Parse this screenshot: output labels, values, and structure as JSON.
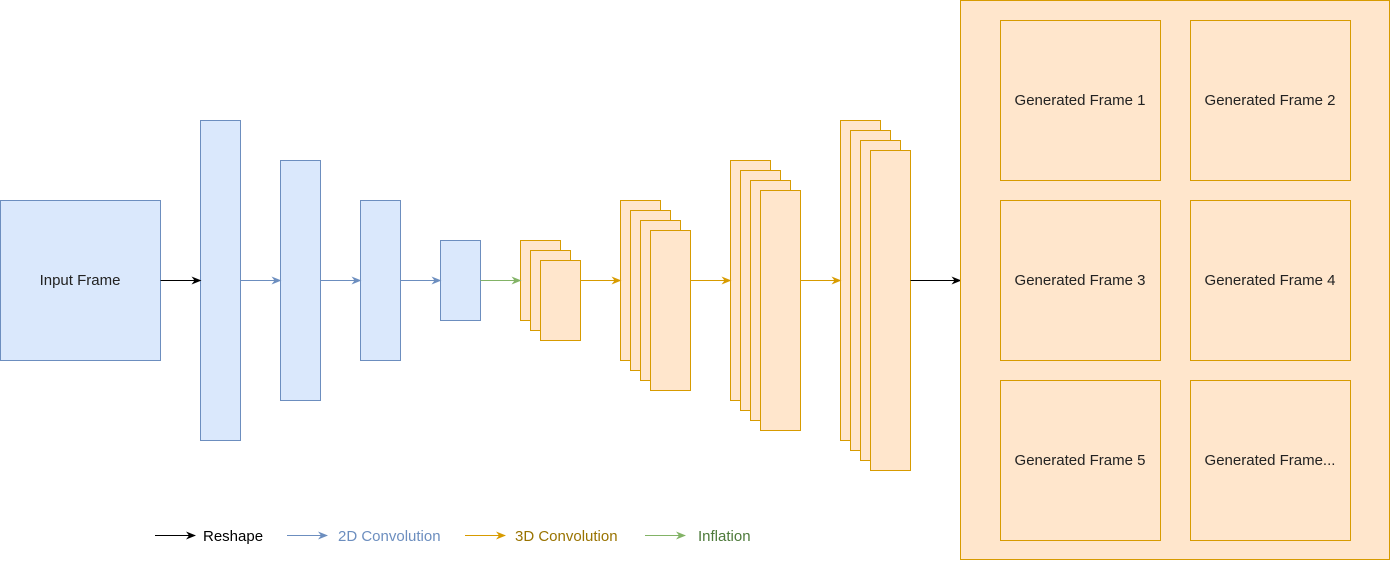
{
  "input": {
    "label": "Input Frame"
  },
  "output": {
    "frames": [
      "Generated Frame 1",
      "Generated Frame 2",
      "Generated Frame 3",
      "Generated Frame 4",
      "Generated Frame 5",
      "Generated Frame..."
    ]
  },
  "legend": {
    "reshape": "Reshape",
    "conv2d": "2D Convolution",
    "conv3d": "3D Convolution",
    "inflation": "Inflation"
  },
  "colors": {
    "blue_fill": "#dae8fc",
    "blue_stroke": "#6c8ebf",
    "orange_fill": "#ffe6cc",
    "orange_stroke": "#d79b00",
    "green_stroke": "#82b366",
    "black": "#000000",
    "conv2d_text": "#6c8ebf",
    "conv3d_text": "#997300",
    "inflation_text": "#4d7a3a"
  }
}
